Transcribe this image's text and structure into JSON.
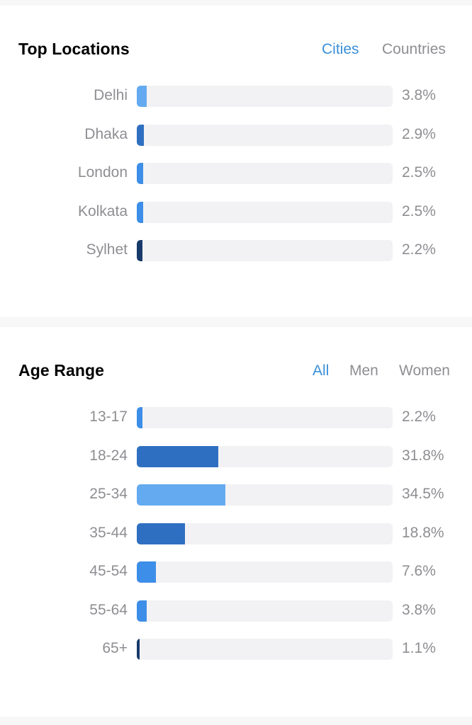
{
  "locations": {
    "title": "Top Locations",
    "tabs": [
      {
        "label": "Cities",
        "active": true
      },
      {
        "label": "Countries",
        "active": false
      }
    ],
    "rows": [
      {
        "label": "Delhi",
        "value": "3.8%",
        "percent": 3.8,
        "color": "#64aaf0"
      },
      {
        "label": "Dhaka",
        "value": "2.9%",
        "percent": 2.9,
        "color": "#2f6fc2"
      },
      {
        "label": "London",
        "value": "2.5%",
        "percent": 2.5,
        "color": "#3d8ee8"
      },
      {
        "label": "Kolkata",
        "value": "2.5%",
        "percent": 2.5,
        "color": "#3d8ee8"
      },
      {
        "label": "Sylhet",
        "value": "2.2%",
        "percent": 2.2,
        "color": "#173a6b"
      }
    ]
  },
  "age": {
    "title": "Age Range",
    "tabs": [
      {
        "label": "All",
        "active": true
      },
      {
        "label": "Men",
        "active": false
      },
      {
        "label": "Women",
        "active": false
      }
    ],
    "rows": [
      {
        "label": "13-17",
        "value": "2.2%",
        "percent": 2.2,
        "color": "#3d8ee8"
      },
      {
        "label": "18-24",
        "value": "31.8%",
        "percent": 31.8,
        "color": "#2f6fc2"
      },
      {
        "label": "25-34",
        "value": "34.5%",
        "percent": 34.5,
        "color": "#64aaf0"
      },
      {
        "label": "35-44",
        "value": "18.8%",
        "percent": 18.8,
        "color": "#2f6fc2"
      },
      {
        "label": "45-54",
        "value": "7.6%",
        "percent": 7.6,
        "color": "#3d8ee8"
      },
      {
        "label": "55-64",
        "value": "3.8%",
        "percent": 3.8,
        "color": "#3d8ee8"
      },
      {
        "label": "65+",
        "value": "1.1%",
        "percent": 1.1,
        "color": "#173a6b"
      }
    ]
  }
}
